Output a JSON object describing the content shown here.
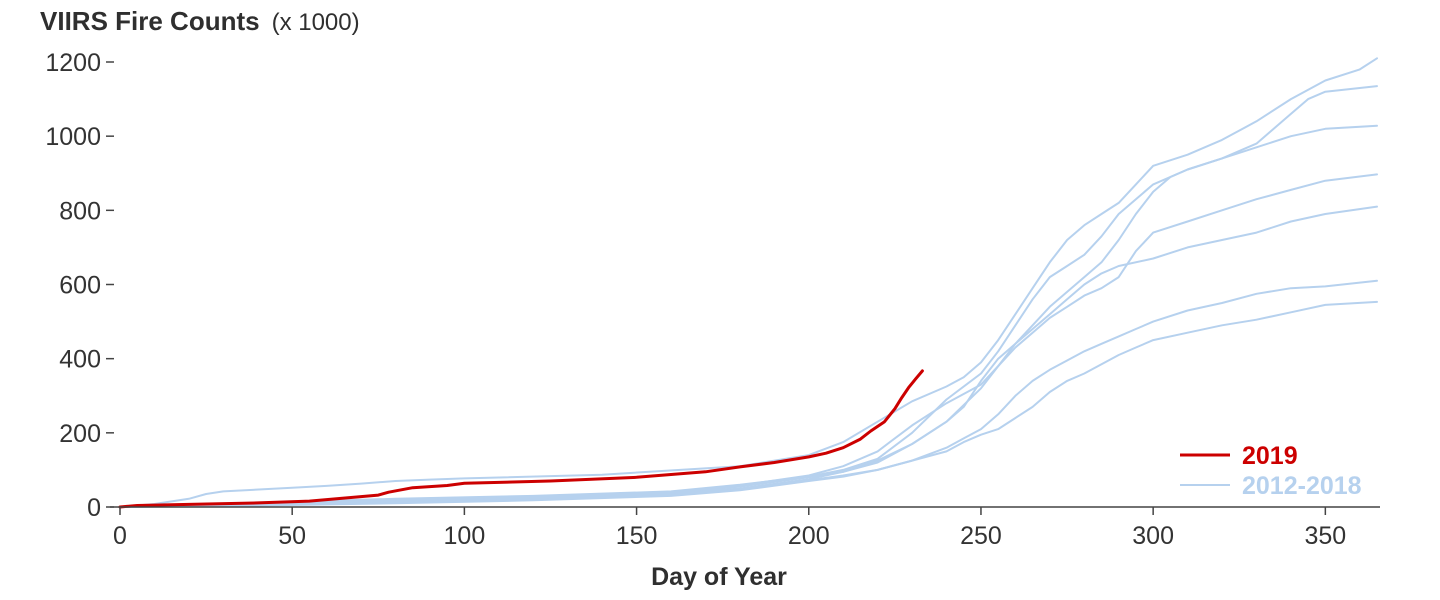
{
  "chart_data": {
    "type": "line",
    "title": "VIIRS Fire Counts",
    "title_unit": "(x 1000)",
    "xlabel": "Day of Year",
    "ylabel": "",
    "xlim": [
      0,
      365
    ],
    "ylim": [
      0,
      1200
    ],
    "x_ticks": [
      0,
      50,
      100,
      150,
      200,
      250,
      300,
      350
    ],
    "y_ticks": [
      0,
      200,
      400,
      600,
      800,
      1000,
      1200
    ],
    "grid": false,
    "legend_position": "bottom-right",
    "colors": {
      "current": "#cc0000",
      "historical": "#b6d1ee"
    },
    "legend": [
      {
        "label": "2019",
        "color": "#cc0000"
      },
      {
        "label": "2012-2018",
        "color": "#b6d1ee"
      }
    ],
    "series": [
      {
        "name": "2019",
        "color": "#cc0000",
        "points": [
          [
            0,
            0
          ],
          [
            5,
            4
          ],
          [
            20,
            7
          ],
          [
            40,
            11
          ],
          [
            55,
            16
          ],
          [
            65,
            24
          ],
          [
            75,
            32
          ],
          [
            78,
            40
          ],
          [
            85,
            52
          ],
          [
            95,
            58
          ],
          [
            100,
            64
          ],
          [
            125,
            70
          ],
          [
            150,
            80
          ],
          [
            170,
            95
          ],
          [
            180,
            108
          ],
          [
            190,
            120
          ],
          [
            200,
            135
          ],
          [
            205,
            145
          ],
          [
            210,
            160
          ],
          [
            215,
            183
          ],
          [
            218,
            205
          ],
          [
            222,
            230
          ],
          [
            225,
            265
          ],
          [
            227,
            295
          ],
          [
            229,
            322
          ],
          [
            231,
            345
          ],
          [
            233,
            367
          ]
        ]
      },
      {
        "name": "2012-2018",
        "color": "#b6d1ee",
        "points": [
          [
            0,
            0
          ],
          [
            10,
            8
          ],
          [
            20,
            22
          ],
          [
            25,
            35
          ],
          [
            30,
            42
          ],
          [
            50,
            52
          ],
          [
            60,
            57
          ],
          [
            70,
            63
          ],
          [
            80,
            70
          ],
          [
            90,
            74
          ],
          [
            100,
            77
          ],
          [
            140,
            87
          ],
          [
            180,
            110
          ],
          [
            200,
            140
          ],
          [
            210,
            175
          ],
          [
            220,
            230
          ],
          [
            230,
            285
          ],
          [
            240,
            325
          ],
          [
            245,
            350
          ],
          [
            250,
            390
          ],
          [
            255,
            450
          ],
          [
            260,
            520
          ],
          [
            265,
            590
          ],
          [
            270,
            660
          ],
          [
            275,
            720
          ],
          [
            280,
            760
          ],
          [
            285,
            790
          ],
          [
            290,
            820
          ],
          [
            295,
            870
          ],
          [
            300,
            920
          ],
          [
            310,
            950
          ],
          [
            320,
            990
          ],
          [
            330,
            1040
          ],
          [
            340,
            1100
          ],
          [
            350,
            1150
          ],
          [
            360,
            1180
          ],
          [
            365,
            1210
          ]
        ]
      },
      {
        "name": "2012-2018",
        "color": "#b6d1ee",
        "points": [
          [
            0,
            0
          ],
          [
            40,
            12
          ],
          [
            80,
            22
          ],
          [
            120,
            30
          ],
          [
            160,
            42
          ],
          [
            180,
            60
          ],
          [
            200,
            82
          ],
          [
            210,
            100
          ],
          [
            220,
            130
          ],
          [
            230,
            200
          ],
          [
            240,
            290
          ],
          [
            250,
            360
          ],
          [
            255,
            420
          ],
          [
            260,
            490
          ],
          [
            265,
            560
          ],
          [
            270,
            620
          ],
          [
            275,
            650
          ],
          [
            280,
            680
          ],
          [
            285,
            730
          ],
          [
            290,
            790
          ],
          [
            295,
            830
          ],
          [
            300,
            870
          ],
          [
            310,
            910
          ],
          [
            320,
            940
          ],
          [
            330,
            980
          ],
          [
            340,
            1060
          ],
          [
            345,
            1100
          ],
          [
            350,
            1120
          ],
          [
            365,
            1135
          ]
        ]
      },
      {
        "name": "2012-2018",
        "color": "#b6d1ee",
        "points": [
          [
            0,
            0
          ],
          [
            40,
            10
          ],
          [
            80,
            18
          ],
          [
            120,
            25
          ],
          [
            160,
            38
          ],
          [
            180,
            55
          ],
          [
            200,
            80
          ],
          [
            210,
            95
          ],
          [
            220,
            120
          ],
          [
            230,
            170
          ],
          [
            240,
            230
          ],
          [
            250,
            320
          ],
          [
            255,
            380
          ],
          [
            260,
            440
          ],
          [
            265,
            490
          ],
          [
            270,
            540
          ],
          [
            275,
            580
          ],
          [
            280,
            620
          ],
          [
            285,
            660
          ],
          [
            290,
            720
          ],
          [
            295,
            790
          ],
          [
            300,
            850
          ],
          [
            305,
            890
          ],
          [
            310,
            910
          ],
          [
            320,
            940
          ],
          [
            330,
            970
          ],
          [
            340,
            1000
          ],
          [
            350,
            1020
          ],
          [
            365,
            1028
          ]
        ]
      },
      {
        "name": "2012-2018",
        "color": "#b6d1ee",
        "points": [
          [
            0,
            0
          ],
          [
            40,
            10
          ],
          [
            80,
            20
          ],
          [
            120,
            28
          ],
          [
            160,
            40
          ],
          [
            180,
            58
          ],
          [
            200,
            85
          ],
          [
            210,
            110
          ],
          [
            220,
            150
          ],
          [
            230,
            220
          ],
          [
            240,
            280
          ],
          [
            250,
            330
          ],
          [
            255,
            380
          ],
          [
            260,
            430
          ],
          [
            265,
            470
          ],
          [
            270,
            510
          ],
          [
            275,
            540
          ],
          [
            280,
            570
          ],
          [
            285,
            590
          ],
          [
            290,
            620
          ],
          [
            295,
            690
          ],
          [
            300,
            740
          ],
          [
            310,
            770
          ],
          [
            320,
            800
          ],
          [
            330,
            830
          ],
          [
            340,
            855
          ],
          [
            350,
            880
          ],
          [
            365,
            897
          ]
        ]
      },
      {
        "name": "2012-2018",
        "color": "#b6d1ee",
        "points": [
          [
            0,
            0
          ],
          [
            40,
            8
          ],
          [
            80,
            16
          ],
          [
            120,
            24
          ],
          [
            160,
            35
          ],
          [
            180,
            50
          ],
          [
            200,
            75
          ],
          [
            210,
            95
          ],
          [
            220,
            125
          ],
          [
            230,
            170
          ],
          [
            240,
            230
          ],
          [
            245,
            270
          ],
          [
            250,
            340
          ],
          [
            255,
            400
          ],
          [
            260,
            440
          ],
          [
            265,
            480
          ],
          [
            270,
            520
          ],
          [
            275,
            560
          ],
          [
            280,
            600
          ],
          [
            285,
            630
          ],
          [
            290,
            650
          ],
          [
            300,
            670
          ],
          [
            310,
            700
          ],
          [
            320,
            720
          ],
          [
            330,
            740
          ],
          [
            340,
            770
          ],
          [
            350,
            790
          ],
          [
            365,
            810
          ]
        ]
      },
      {
        "name": "2012-2018",
        "color": "#b6d1ee",
        "points": [
          [
            0,
            0
          ],
          [
            40,
            5
          ],
          [
            80,
            12
          ],
          [
            120,
            20
          ],
          [
            160,
            32
          ],
          [
            180,
            48
          ],
          [
            200,
            72
          ],
          [
            210,
            85
          ],
          [
            220,
            100
          ],
          [
            230,
            125
          ],
          [
            240,
            160
          ],
          [
            245,
            185
          ],
          [
            250,
            210
          ],
          [
            255,
            250
          ],
          [
            260,
            300
          ],
          [
            265,
            340
          ],
          [
            270,
            370
          ],
          [
            275,
            395
          ],
          [
            280,
            420
          ],
          [
            285,
            440
          ],
          [
            290,
            460
          ],
          [
            295,
            480
          ],
          [
            300,
            500
          ],
          [
            310,
            530
          ],
          [
            320,
            550
          ],
          [
            330,
            575
          ],
          [
            340,
            590
          ],
          [
            350,
            595
          ],
          [
            365,
            610
          ]
        ]
      },
      {
        "name": "2012-2018",
        "color": "#b6d1ee",
        "points": [
          [
            0,
            0
          ],
          [
            40,
            4
          ],
          [
            80,
            10
          ],
          [
            120,
            18
          ],
          [
            160,
            30
          ],
          [
            180,
            45
          ],
          [
            200,
            70
          ],
          [
            210,
            82
          ],
          [
            220,
            100
          ],
          [
            230,
            125
          ],
          [
            240,
            150
          ],
          [
            245,
            175
          ],
          [
            250,
            195
          ],
          [
            255,
            210
          ],
          [
            260,
            240
          ],
          [
            265,
            270
          ],
          [
            270,
            310
          ],
          [
            275,
            340
          ],
          [
            280,
            360
          ],
          [
            285,
            385
          ],
          [
            290,
            410
          ],
          [
            295,
            430
          ],
          [
            300,
            450
          ],
          [
            310,
            470
          ],
          [
            320,
            490
          ],
          [
            330,
            505
          ],
          [
            340,
            525
          ],
          [
            350,
            545
          ],
          [
            365,
            553
          ]
        ]
      }
    ]
  }
}
